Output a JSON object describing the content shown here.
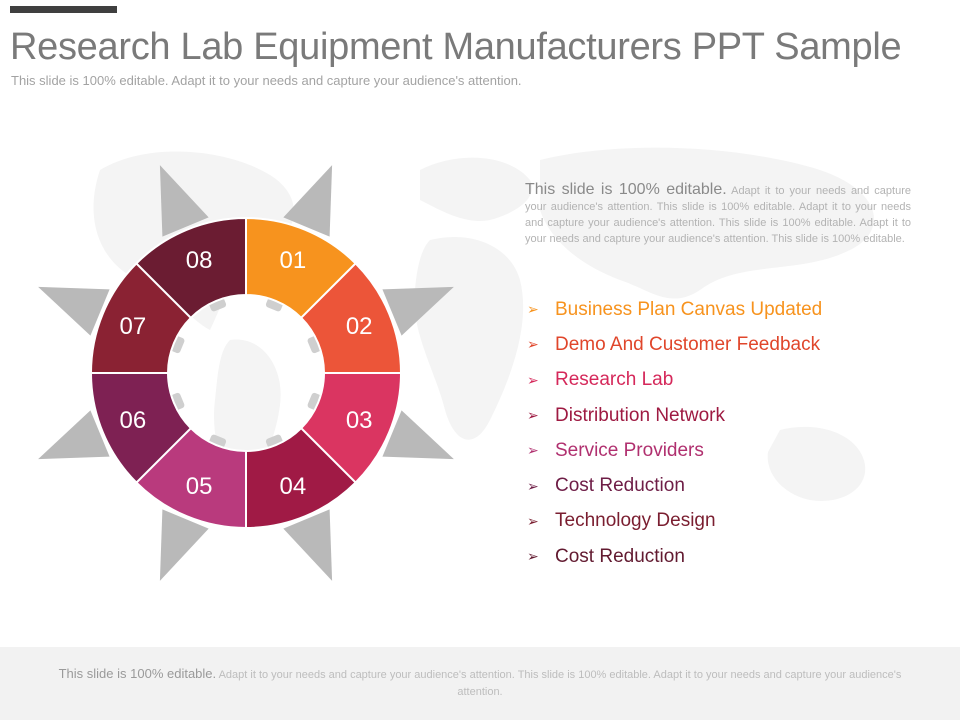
{
  "title": "Research Lab Equipment Manufacturers PPT Sample",
  "subtitle": "This slide is 100% editable. Adapt it to your needs and capture your audience's attention.",
  "description": {
    "lead": "This slide is 100% editable.",
    "body": " Adapt it to your needs and capture your audience's attention. This slide is 100% editable. Adapt it to your needs and capture your audience's attention. This slide is 100% editable. Adapt it to your needs and capture your audience's attention. This slide is 100% editable."
  },
  "segments": [
    {
      "num": "01",
      "color": "#F7931E"
    },
    {
      "num": "02",
      "color": "#EC5539"
    },
    {
      "num": "03",
      "color": "#DA3561"
    },
    {
      "num": "04",
      "color": "#A01A45"
    },
    {
      "num": "05",
      "color": "#B93A7D"
    },
    {
      "num": "06",
      "color": "#7E2153"
    },
    {
      "num": "07",
      "color": "#8A2233"
    },
    {
      "num": "08",
      "color": "#6B1C32"
    }
  ],
  "bullets": [
    {
      "text": "Business Plan Canvas Updated",
      "color": "#F7931E"
    },
    {
      "text": "Demo And Customer Feedback",
      "color": "#E0462B"
    },
    {
      "text": "Research Lab",
      "color": "#D5285A"
    },
    {
      "text": "Distribution Network",
      "color": "#9E1A42"
    },
    {
      "text": "Service Providers",
      "color": "#B0306F"
    },
    {
      "text": "Cost Reduction",
      "color": "#6E1D46"
    },
    {
      "text": "Technology Design",
      "color": "#7A1E30"
    },
    {
      "text": "Cost Reduction",
      "color": "#621A30"
    }
  ],
  "bullet_arrow": "➢",
  "arrow_color": "#B9B9B9",
  "footer": {
    "lead": "This slide is 100% editable.",
    "body": " Adapt it to your needs and capture your audience's attention. This slide is 100% editable. Adapt it to your needs and capture your audience's attention."
  }
}
